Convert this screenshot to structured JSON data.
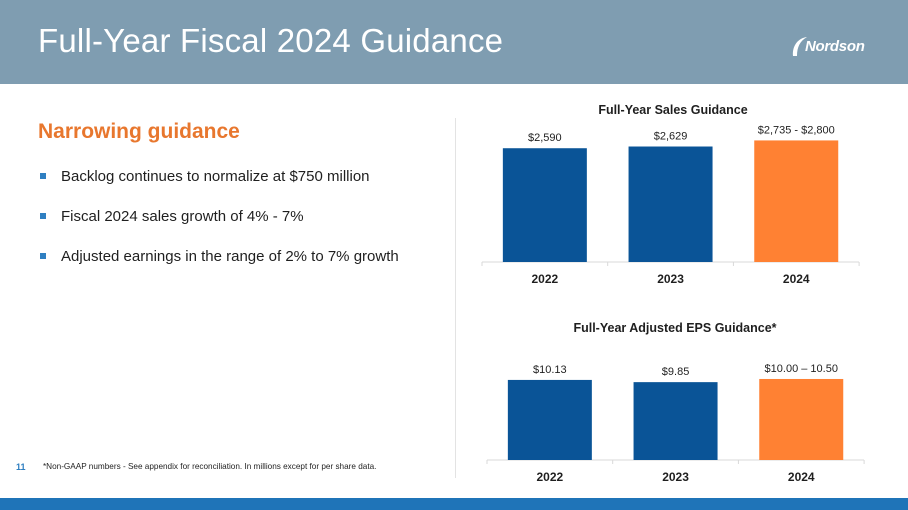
{
  "slide": {
    "title": "Full-Year Fiscal 2024 Guidance",
    "logo_text": "Nordson",
    "subheading": "Narrowing guidance",
    "bullets": [
      "Backlog continues to normalize at $750 million",
      "Fiscal 2024 sales growth of 4% - 7%",
      "Adjusted earnings in the range of 2% to 7% growth"
    ],
    "page_number": "11",
    "footnote": "*Non-GAAP numbers - See appendix for reconciliation. In millions except for per share data."
  },
  "colors": {
    "header": "#7f9db1",
    "accent_orange": "#e8772e",
    "bar_blue": "#0a5497",
    "bar_orange": "#ff8133",
    "footer_blue": "#1f74b8"
  },
  "chart_data": [
    {
      "type": "bar",
      "title": "Full-Year Sales Guidance",
      "categories": [
        "2022",
        "2023",
        "2024"
      ],
      "values": [
        2590,
        2629,
        2767.5
      ],
      "data_labels": [
        "$2,590",
        "$2,629",
        "$2,735 - $2,800"
      ],
      "highlight": [
        false,
        false,
        true
      ],
      "ylim": [
        0,
        2800
      ],
      "grid": false,
      "xlabel": "",
      "ylabel": ""
    },
    {
      "type": "bar",
      "title": "Full-Year Adjusted EPS Guidance*",
      "categories": [
        "2022",
        "2023",
        "2024"
      ],
      "values": [
        10.13,
        9.85,
        10.25
      ],
      "data_labels": [
        "$10.13",
        "$9.85",
        "$10.00 – 10.50"
      ],
      "highlight": [
        false,
        false,
        true
      ],
      "ylim": [
        0,
        10.5
      ],
      "grid": false,
      "xlabel": "",
      "ylabel": ""
    }
  ]
}
